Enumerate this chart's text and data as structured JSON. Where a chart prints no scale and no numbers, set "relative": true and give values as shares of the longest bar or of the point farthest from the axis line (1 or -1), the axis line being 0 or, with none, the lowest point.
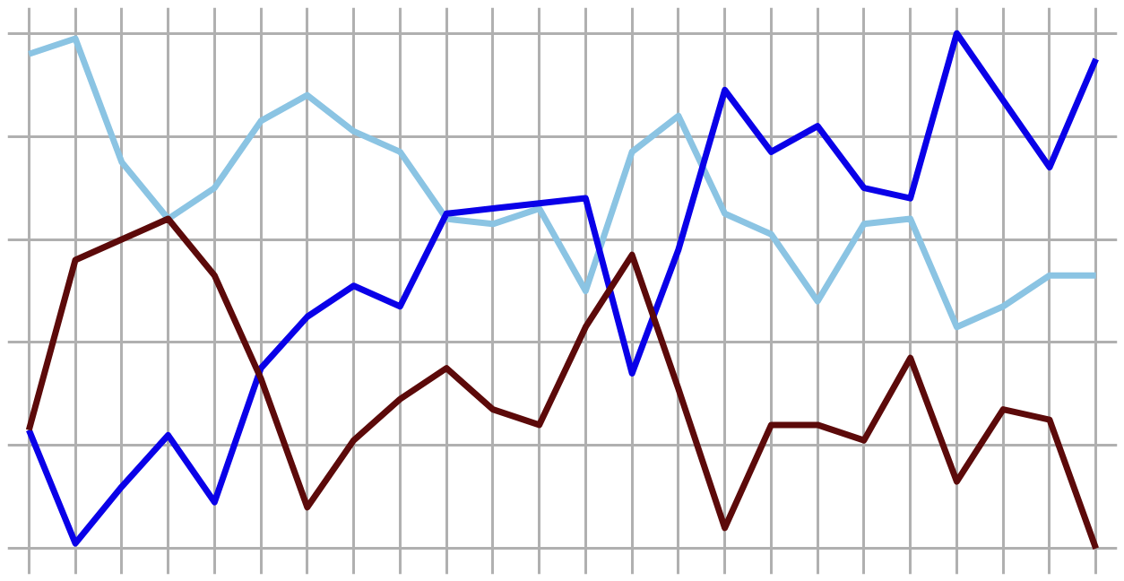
{
  "chart_data": {
    "type": "line",
    "relative": true,
    "grid": true,
    "marker": "none",
    "line_style": "solid",
    "categories": [
      null,
      null,
      null,
      null,
      null,
      null,
      null,
      null,
      null,
      null,
      null,
      null,
      null,
      null,
      null,
      null,
      null,
      null,
      null,
      null,
      null,
      null,
      null,
      null
    ],
    "series": [
      {
        "color": "#8bc4e3",
        "values": [
          0.96,
          0.99,
          0.75,
          0.64,
          0.7,
          0.83,
          0.88,
          0.81,
          0.77,
          0.64,
          0.63,
          0.66,
          0.5,
          0.77,
          0.84,
          0.65,
          0.61,
          0.48,
          0.63,
          0.64,
          0.43,
          0.47,
          0.53,
          0.53
        ]
      },
      {
        "color": "#0a00e8",
        "values": [
          0.23,
          0.01,
          0.12,
          0.22,
          0.09,
          0.35,
          0.45,
          0.51,
          0.47,
          0.65,
          0.66,
          0.67,
          0.68,
          0.34,
          0.58,
          0.89,
          0.77,
          0.82,
          0.7,
          0.68,
          1,
          0.87,
          0.74,
          0.95
        ]
      },
      {
        "color": "#5c0a0a",
        "values": [
          0.23,
          0.56,
          0.6,
          0.64,
          0.53,
          0.33,
          0.08,
          0.21,
          0.29,
          0.35,
          0.27,
          0.24,
          0.43,
          0.57,
          0.31,
          0.04,
          0.24,
          0.24,
          0.21,
          0.37,
          0.13,
          0.27,
          0.25,
          0
        ]
      }
    ]
  }
}
